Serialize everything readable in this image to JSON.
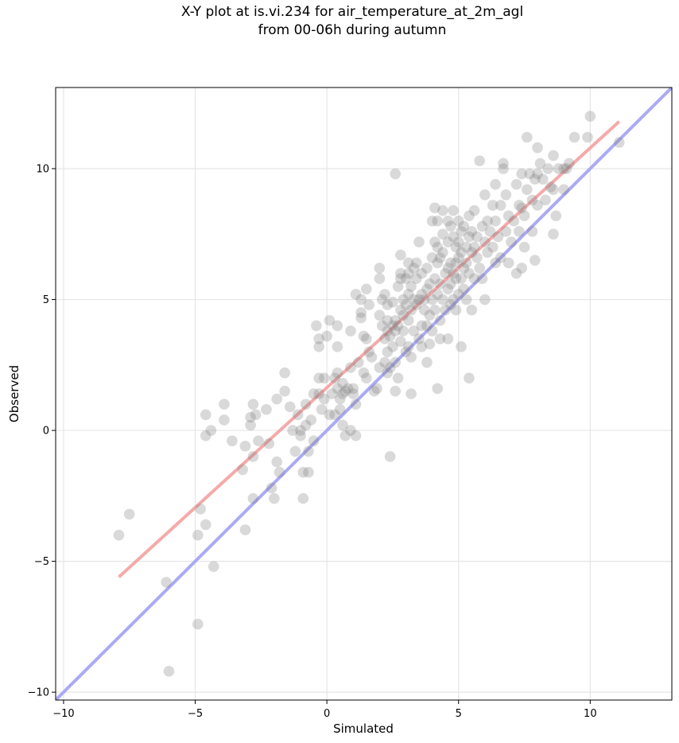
{
  "chart_data": {
    "type": "scatter",
    "title_lines": [
      "X-Y plot at is.vi.234 for air_temperature_at_2m_agl",
      "from 00-06h during autumn"
    ],
    "xlabel": "Simulated",
    "ylabel": "Observed",
    "xlim": [
      -10.3,
      13.1
    ],
    "ylim": [
      -10.3,
      13.1
    ],
    "xticks": [
      -10,
      -5,
      0,
      5,
      10
    ],
    "yticks": [
      -10,
      -5,
      0,
      5,
      10
    ],
    "xtick_labels": [
      "−10",
      "−5",
      "0",
      "5",
      "10"
    ],
    "ytick_labels": [
      "−10",
      "−5",
      "0",
      "5",
      "10"
    ],
    "grid": true,
    "point_color": "#808080",
    "one_to_one_color": "#aaaaf5",
    "fit_color": "#f5aaaa",
    "fit_line": {
      "x": [
        -7.9,
        11.1
      ],
      "y": [
        -5.6,
        11.8
      ]
    },
    "one_to_one_line": {
      "x": [
        -10.3,
        13.1
      ],
      "y": [
        -10.3,
        13.1
      ]
    },
    "points": [
      [
        -7.9,
        -4.0
      ],
      [
        -7.5,
        -3.2
      ],
      [
        -6.1,
        -5.8
      ],
      [
        -6.0,
        -9.2
      ],
      [
        -4.9,
        -7.4
      ],
      [
        -4.9,
        -4.0
      ],
      [
        -4.8,
        -3.0
      ],
      [
        -4.6,
        -3.6
      ],
      [
        -4.3,
        -5.2
      ],
      [
        -4.6,
        0.6
      ],
      [
        -4.6,
        -0.2
      ],
      [
        -4.4,
        0.0
      ],
      [
        -3.9,
        1.0
      ],
      [
        -3.9,
        0.4
      ],
      [
        -3.6,
        -0.4
      ],
      [
        -3.2,
        -1.5
      ],
      [
        -3.1,
        -0.6
      ],
      [
        -3.1,
        -3.8
      ],
      [
        -2.9,
        0.2
      ],
      [
        -2.9,
        0.5
      ],
      [
        -2.8,
        1.0
      ],
      [
        -2.8,
        -1.0
      ],
      [
        -2.8,
        -2.6
      ],
      [
        -2.7,
        0.6
      ],
      [
        -2.6,
        -0.4
      ],
      [
        -2.3,
        0.8
      ],
      [
        -2.2,
        -0.5
      ],
      [
        -2.1,
        -2.2
      ],
      [
        -2.0,
        -2.6
      ],
      [
        -1.9,
        1.2
      ],
      [
        -1.9,
        -1.2
      ],
      [
        -1.8,
        -1.6
      ],
      [
        -1.6,
        2.2
      ],
      [
        -1.6,
        1.5
      ],
      [
        -1.4,
        0.9
      ],
      [
        -1.3,
        0.0
      ],
      [
        -1.2,
        -0.8
      ],
      [
        -1.1,
        0.6
      ],
      [
        -1.0,
        0.0
      ],
      [
        -1.0,
        -0.2
      ],
      [
        -0.9,
        -1.6
      ],
      [
        -0.9,
        -2.6
      ],
      [
        -0.8,
        1.0
      ],
      [
        -0.8,
        0.2
      ],
      [
        -0.7,
        -0.8
      ],
      [
        -0.7,
        -1.6
      ],
      [
        -0.6,
        0.4
      ],
      [
        -0.5,
        1.4
      ],
      [
        -0.5,
        -0.4
      ],
      [
        -0.4,
        4.0
      ],
      [
        -0.3,
        3.5
      ],
      [
        -0.3,
        3.2
      ],
      [
        -0.3,
        2.0
      ],
      [
        -0.3,
        1.4
      ],
      [
        -0.2,
        0.8
      ],
      [
        -0.1,
        2.0
      ],
      [
        -0.1,
        1.2
      ],
      [
        0.0,
        3.6
      ],
      [
        0.1,
        4.2
      ],
      [
        0.1,
        0.6
      ],
      [
        0.2,
        1.4
      ],
      [
        0.3,
        2.0
      ],
      [
        0.3,
        0.6
      ],
      [
        0.4,
        4.0
      ],
      [
        0.4,
        3.2
      ],
      [
        0.4,
        2.2
      ],
      [
        0.4,
        1.6
      ],
      [
        0.5,
        1.2
      ],
      [
        0.5,
        0.8
      ],
      [
        0.6,
        1.4
      ],
      [
        0.6,
        1.8
      ],
      [
        0.6,
        0.2
      ],
      [
        0.7,
        1.5
      ],
      [
        0.7,
        -0.2
      ],
      [
        0.8,
        1.6
      ],
      [
        0.9,
        3.8
      ],
      [
        0.9,
        2.4
      ],
      [
        0.9,
        0.0
      ],
      [
        1.0,
        1.4
      ],
      [
        1.0,
        1.6
      ],
      [
        1.1,
        -0.2
      ],
      [
        1.1,
        1.0
      ],
      [
        1.1,
        5.2
      ],
      [
        1.2,
        2.6
      ],
      [
        1.3,
        5.0
      ],
      [
        1.3,
        4.5
      ],
      [
        1.3,
        4.3
      ],
      [
        1.4,
        3.6
      ],
      [
        1.4,
        2.2
      ],
      [
        1.5,
        5.4
      ],
      [
        1.5,
        3.5
      ],
      [
        1.5,
        2.0
      ],
      [
        1.6,
        4.8
      ],
      [
        1.6,
        3.0
      ],
      [
        1.7,
        2.8
      ],
      [
        1.8,
        1.5
      ],
      [
        1.9,
        1.6
      ],
      [
        2.0,
        6.2
      ],
      [
        2.0,
        5.8
      ],
      [
        2.0,
        4.4
      ],
      [
        2.0,
        2.4
      ],
      [
        2.1,
        5.0
      ],
      [
        2.1,
        4.0
      ],
      [
        2.2,
        5.2
      ],
      [
        2.2,
        3.5
      ],
      [
        2.2,
        2.6
      ],
      [
        2.3,
        4.8
      ],
      [
        2.3,
        4.2
      ],
      [
        2.3,
        3.8
      ],
      [
        2.3,
        3.0
      ],
      [
        2.3,
        2.2
      ],
      [
        2.4,
        3.6
      ],
      [
        2.4,
        2.4
      ],
      [
        2.4,
        -1.0
      ],
      [
        2.5,
        4.9
      ],
      [
        2.5,
        4.0
      ],
      [
        2.5,
        3.2
      ],
      [
        2.6,
        4.2
      ],
      [
        2.6,
        3.8
      ],
      [
        2.6,
        2.6
      ],
      [
        2.6,
        1.5
      ],
      [
        2.6,
        9.8
      ],
      [
        2.7,
        5.5
      ],
      [
        2.7,
        4.0
      ],
      [
        2.7,
        2.0
      ],
      [
        2.8,
        6.7
      ],
      [
        2.8,
        6.0
      ],
      [
        2.8,
        5.8
      ],
      [
        2.8,
        4.6
      ],
      [
        2.8,
        3.4
      ],
      [
        2.9,
        5.0
      ],
      [
        2.9,
        4.4
      ],
      [
        2.9,
        3.8
      ],
      [
        3.0,
        5.8
      ],
      [
        3.0,
        4.8
      ],
      [
        3.0,
        3.0
      ],
      [
        3.1,
        6.4
      ],
      [
        3.1,
        6.0
      ],
      [
        3.1,
        5.2
      ],
      [
        3.1,
        4.2
      ],
      [
        3.1,
        3.2
      ],
      [
        3.2,
        5.5
      ],
      [
        3.2,
        4.6
      ],
      [
        3.2,
        2.8
      ],
      [
        3.2,
        1.4
      ],
      [
        3.3,
        6.2
      ],
      [
        3.3,
        5.0
      ],
      [
        3.3,
        3.8
      ],
      [
        3.4,
        6.4
      ],
      [
        3.4,
        5.8
      ],
      [
        3.4,
        4.8
      ],
      [
        3.5,
        7.2
      ],
      [
        3.5,
        5.0
      ],
      [
        3.5,
        3.5
      ],
      [
        3.6,
        6.0
      ],
      [
        3.6,
        5.2
      ],
      [
        3.6,
        4.0
      ],
      [
        3.6,
        3.2
      ],
      [
        3.7,
        5.0
      ],
      [
        3.7,
        4.6
      ],
      [
        3.8,
        6.2
      ],
      [
        3.8,
        5.4
      ],
      [
        3.8,
        4.0
      ],
      [
        3.8,
        2.6
      ],
      [
        3.9,
        5.6
      ],
      [
        3.9,
        4.4
      ],
      [
        3.9,
        3.3
      ],
      [
        4.0,
        8.0
      ],
      [
        4.0,
        6.6
      ],
      [
        4.0,
        5.0
      ],
      [
        4.0,
        3.8
      ],
      [
        4.1,
        8.5
      ],
      [
        4.1,
        7.2
      ],
      [
        4.1,
        5.8
      ],
      [
        4.1,
        4.6
      ],
      [
        4.2,
        8.0
      ],
      [
        4.2,
        7.0
      ],
      [
        4.2,
        6.4
      ],
      [
        4.2,
        5.2
      ],
      [
        4.2,
        1.6
      ],
      [
        4.3,
        6.6
      ],
      [
        4.3,
        5.6
      ],
      [
        4.3,
        4.2
      ],
      [
        4.3,
        3.5
      ],
      [
        4.4,
        8.4
      ],
      [
        4.4,
        7.5
      ],
      [
        4.4,
        6.8
      ],
      [
        4.4,
        5.0
      ],
      [
        4.5,
        6.0
      ],
      [
        4.5,
        4.6
      ],
      [
        4.6,
        8.0
      ],
      [
        4.6,
        7.2
      ],
      [
        4.6,
        6.2
      ],
      [
        4.6,
        5.4
      ],
      [
        4.6,
        3.5
      ],
      [
        4.7,
        7.8
      ],
      [
        4.7,
        6.4
      ],
      [
        4.7,
        5.6
      ],
      [
        4.7,
        4.8
      ],
      [
        4.8,
        8.4
      ],
      [
        4.8,
        7.4
      ],
      [
        4.8,
        6.0
      ],
      [
        4.8,
        5.0
      ],
      [
        4.9,
        7.0
      ],
      [
        4.9,
        6.4
      ],
      [
        4.9,
        5.8
      ],
      [
        4.9,
        4.6
      ],
      [
        5.0,
        8.0
      ],
      [
        5.0,
        7.2
      ],
      [
        5.0,
        6.6
      ],
      [
        5.0,
        5.2
      ],
      [
        5.1,
        7.6
      ],
      [
        5.1,
        6.8
      ],
      [
        5.1,
        5.8
      ],
      [
        5.1,
        3.2
      ],
      [
        5.2,
        7.8
      ],
      [
        5.2,
        6.2
      ],
      [
        5.2,
        5.4
      ],
      [
        5.3,
        7.0
      ],
      [
        5.3,
        6.4
      ],
      [
        5.3,
        5.0
      ],
      [
        5.4,
        8.2
      ],
      [
        5.4,
        7.4
      ],
      [
        5.4,
        6.0
      ],
      [
        5.4,
        2.0
      ],
      [
        5.5,
        7.6
      ],
      [
        5.5,
        6.8
      ],
      [
        5.5,
        4.6
      ],
      [
        5.6,
        8.4
      ],
      [
        5.6,
        7.0
      ],
      [
        5.6,
        5.8
      ],
      [
        5.7,
        7.4
      ],
      [
        5.7,
        6.6
      ],
      [
        5.8,
        6.2
      ],
      [
        5.8,
        10.3
      ],
      [
        5.9,
        7.8
      ],
      [
        5.9,
        5.8
      ],
      [
        6.0,
        9.0
      ],
      [
        6.0,
        7.2
      ],
      [
        6.0,
        5.0
      ],
      [
        6.1,
        8.0
      ],
      [
        6.1,
        6.8
      ],
      [
        6.2,
        7.6
      ],
      [
        6.3,
        8.6
      ],
      [
        6.3,
        7.0
      ],
      [
        6.4,
        9.4
      ],
      [
        6.4,
        8.0
      ],
      [
        6.4,
        6.4
      ],
      [
        6.5,
        7.4
      ],
      [
        6.6,
        8.6
      ],
      [
        6.6,
        6.6
      ],
      [
        6.7,
        10.2
      ],
      [
        6.7,
        10.0
      ],
      [
        6.8,
        9.0
      ],
      [
        6.8,
        7.6
      ],
      [
        6.9,
        8.2
      ],
      [
        6.9,
        6.4
      ],
      [
        7.0,
        7.2
      ],
      [
        7.1,
        8.0
      ],
      [
        7.2,
        9.4
      ],
      [
        7.2,
        6.0
      ],
      [
        7.3,
        8.6
      ],
      [
        7.3,
        7.6
      ],
      [
        7.4,
        9.8
      ],
      [
        7.4,
        8.5
      ],
      [
        7.4,
        6.2
      ],
      [
        7.5,
        8.2
      ],
      [
        7.5,
        7.0
      ],
      [
        7.6,
        11.2
      ],
      [
        7.6,
        9.2
      ],
      [
        7.7,
        9.8
      ],
      [
        7.8,
        8.8
      ],
      [
        7.8,
        7.6
      ],
      [
        7.9,
        9.6
      ],
      [
        7.9,
        6.5
      ],
      [
        8.0,
        10.8
      ],
      [
        8.0,
        9.8
      ],
      [
        8.0,
        8.6
      ],
      [
        8.1,
        10.2
      ],
      [
        8.2,
        9.6
      ],
      [
        8.3,
        8.8
      ],
      [
        8.4,
        10.0
      ],
      [
        8.5,
        9.3
      ],
      [
        8.6,
        10.5
      ],
      [
        8.6,
        9.2
      ],
      [
        8.6,
        7.5
      ],
      [
        8.7,
        8.2
      ],
      [
        8.8,
        10.0
      ],
      [
        9.0,
        9.2
      ],
      [
        9.0,
        10.0
      ],
      [
        9.1,
        10.0
      ],
      [
        9.2,
        10.2
      ],
      [
        9.4,
        11.2
      ],
      [
        9.9,
        11.2
      ],
      [
        10.0,
        12.0
      ],
      [
        11.1,
        11.0
      ]
    ]
  }
}
